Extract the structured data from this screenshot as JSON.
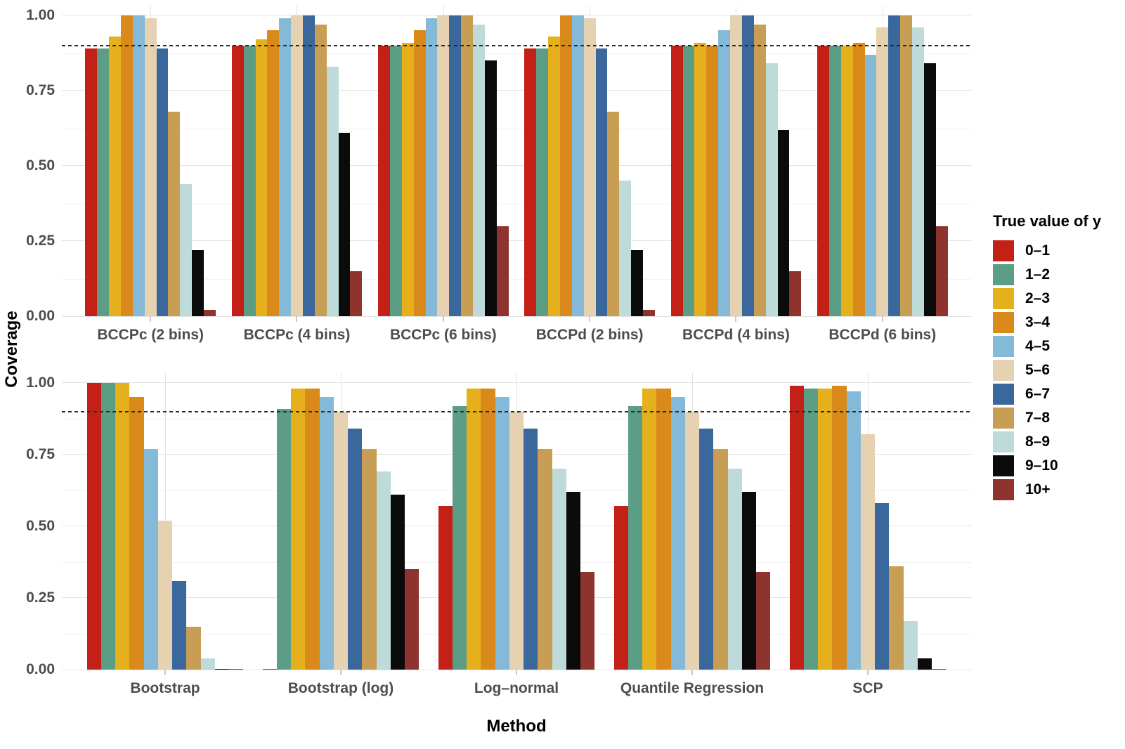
{
  "chart_data": {
    "type": "bar",
    "ylabel": "Coverage",
    "xlabel": "Method",
    "ylim": [
      0,
      1
    ],
    "y_tick_labels": [
      "0.00",
      "0.25",
      "0.50",
      "0.75",
      "1.00"
    ],
    "y_tick_values": [
      0,
      0.25,
      0.5,
      0.75,
      1.0
    ],
    "minor_grid_values": [
      0.125,
      0.375,
      0.625,
      0.875
    ],
    "grid": true,
    "reference_line": 0.9,
    "legend_title": "True value of y",
    "legend_position": "right",
    "series_labels": [
      "0–1",
      "1–2",
      "2–3",
      "3–4",
      "4–5",
      "5–6",
      "6–7",
      "7–8",
      "8–9",
      "9–10",
      "10+"
    ],
    "series_colors": [
      "#c32017",
      "#5b9e85",
      "#e5b01c",
      "#d98a1b",
      "#84bad8",
      "#e6d1b0",
      "#3a689c",
      "#c89e54",
      "#bedbd9",
      "#0b0b0b",
      "#8e332d"
    ],
    "rows": [
      {
        "methods": [
          "BCCPc (2 bins)",
          "BCCPc (4 bins)",
          "BCCPc (6 bins)",
          "BCCPd (2 bins)",
          "BCCPd (4 bins)",
          "BCCPd (6 bins)"
        ],
        "values": [
          [
            0.89,
            0.89,
            0.93,
            1.0,
            1.0,
            0.99,
            0.89,
            0.68,
            0.44,
            0.22,
            0.02
          ],
          [
            0.9,
            0.9,
            0.92,
            0.95,
            0.99,
            1.0,
            1.0,
            0.97,
            0.83,
            0.61,
            0.15
          ],
          [
            0.9,
            0.9,
            0.91,
            0.95,
            0.99,
            1.0,
            1.0,
            1.0,
            0.97,
            0.85,
            0.3
          ],
          [
            0.89,
            0.89,
            0.93,
            1.0,
            1.0,
            0.99,
            0.89,
            0.68,
            0.45,
            0.22,
            0.02
          ],
          [
            0.9,
            0.9,
            0.91,
            0.9,
            0.95,
            1.0,
            1.0,
            0.97,
            0.84,
            0.62,
            0.15
          ],
          [
            0.9,
            0.9,
            0.9,
            0.91,
            0.87,
            0.96,
            1.0,
            1.0,
            0.96,
            0.84,
            0.3
          ]
        ]
      },
      {
        "methods": [
          "Bootstrap",
          "Bootstrap (log)",
          "Log–normal",
          "Quantile Regression",
          "SCP"
        ],
        "values": [
          [
            1.0,
            1.0,
            1.0,
            0.95,
            0.77,
            0.52,
            0.31,
            0.15,
            0.04,
            0.003,
            0.002
          ],
          [
            0.003,
            0.91,
            0.98,
            0.98,
            0.95,
            0.9,
            0.84,
            0.77,
            0.69,
            0.61,
            0.35
          ],
          [
            0.57,
            0.92,
            0.98,
            0.98,
            0.95,
            0.9,
            0.84,
            0.77,
            0.7,
            0.62,
            0.34
          ],
          [
            0.57,
            0.92,
            0.98,
            0.98,
            0.95,
            0.9,
            0.84,
            0.77,
            0.7,
            0.62,
            0.34
          ],
          [
            0.99,
            0.98,
            0.98,
            0.99,
            0.97,
            0.82,
            0.58,
            0.36,
            0.17,
            0.04,
            0.003
          ]
        ]
      }
    ]
  }
}
